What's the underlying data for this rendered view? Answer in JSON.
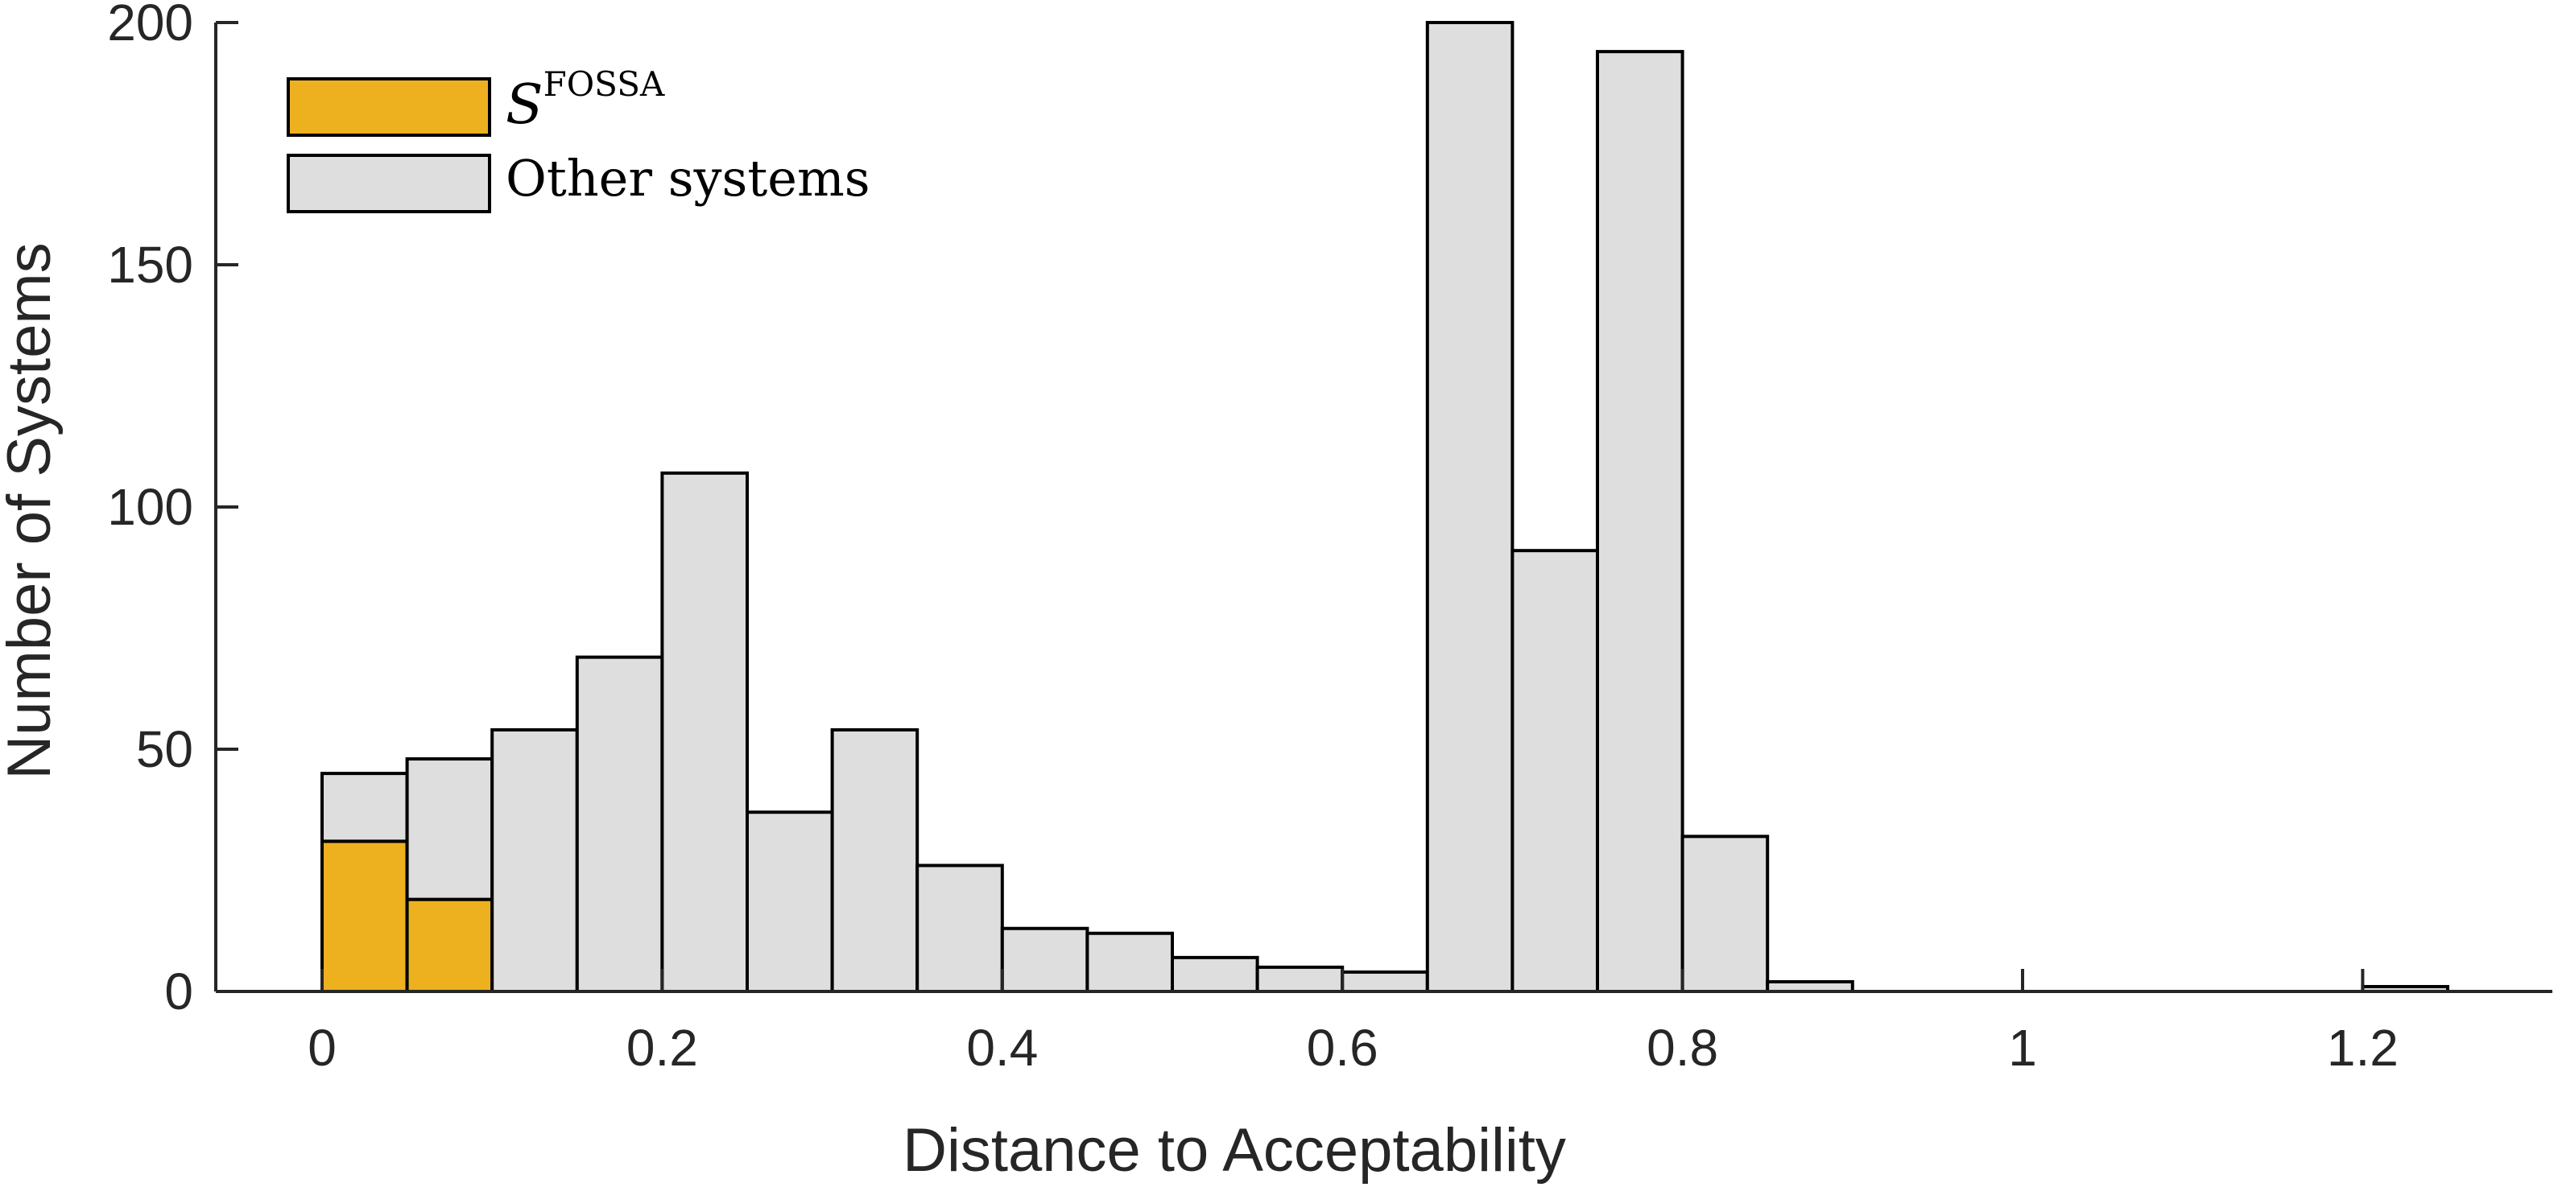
{
  "chart_data": {
    "type": "bar",
    "subtype": "stacked-histogram",
    "bin_width": 0.05,
    "bin_starts": [
      0,
      0.05,
      0.1,
      0.15,
      0.2,
      0.25,
      0.3,
      0.35,
      0.4,
      0.45,
      0.5,
      0.55,
      0.6,
      0.65,
      0.7,
      0.75,
      0.8,
      0.85,
      0.9,
      0.95,
      1.0,
      1.05,
      1.1,
      1.15,
      1.2
    ],
    "series": [
      {
        "name_script": "S",
        "name_superscript": "FOSSA",
        "color": "#EDB120",
        "values": [
          31,
          19,
          0,
          0,
          0,
          0,
          0,
          0,
          0,
          0,
          0,
          0,
          0,
          0,
          0,
          0,
          0,
          0,
          0,
          0,
          0,
          0,
          0,
          0,
          0
        ]
      },
      {
        "name": "Other systems",
        "color": "#DEDEDE",
        "values": [
          14,
          29,
          54,
          69,
          107,
          37,
          54,
          26,
          13,
          12,
          7,
          5,
          4,
          200,
          91,
          194,
          32,
          2,
          0,
          0,
          0,
          0,
          0,
          0,
          1
        ]
      }
    ],
    "xlabel": "Distance to Acceptability",
    "ylabel": "Number of Systems",
    "xlim": [
      -0.15,
      1.32
    ],
    "ylim": [
      0,
      200
    ],
    "xticks": [
      0,
      0.2,
      0.4,
      0.6,
      0.8,
      1,
      1.2
    ],
    "xtick_labels": [
      "0",
      "0.2",
      "0.4",
      "0.6",
      "0.8",
      "1",
      "1.2"
    ],
    "yticks": [
      0,
      50,
      100,
      150,
      200
    ],
    "ytick_labels": [
      "0",
      "50",
      "100",
      "150",
      "200"
    ],
    "grid": false,
    "legend_position": "top-left",
    "axes_box": "left-and-bottom"
  }
}
